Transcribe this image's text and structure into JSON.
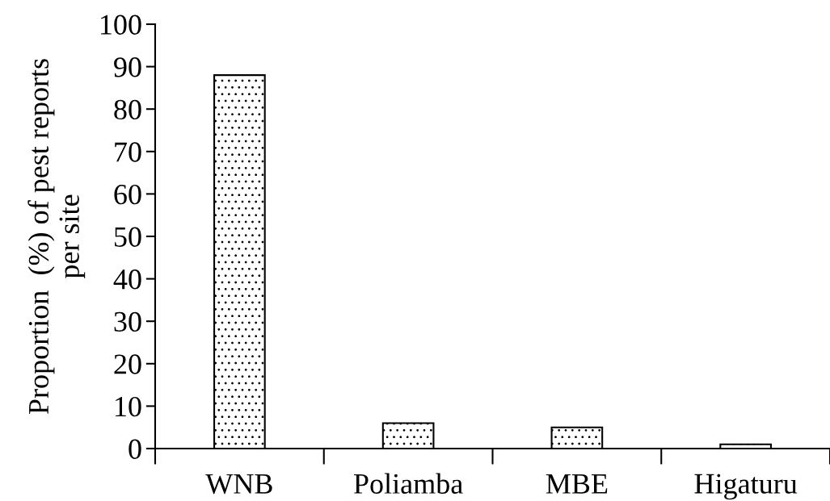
{
  "chart_data": {
    "type": "bar",
    "ylabel": "Proportion  (%) of pest reports\nper site",
    "categories": [
      "WNB",
      "Poliamba",
      "MBE",
      "Higaturu"
    ],
    "values": [
      88,
      6,
      5,
      1
    ],
    "color": "#000000",
    "ylim": [
      0,
      100
    ],
    "yticks": [
      0,
      10,
      20,
      30,
      40,
      50,
      60,
      70,
      80,
      90,
      100
    ],
    "grid": false
  }
}
